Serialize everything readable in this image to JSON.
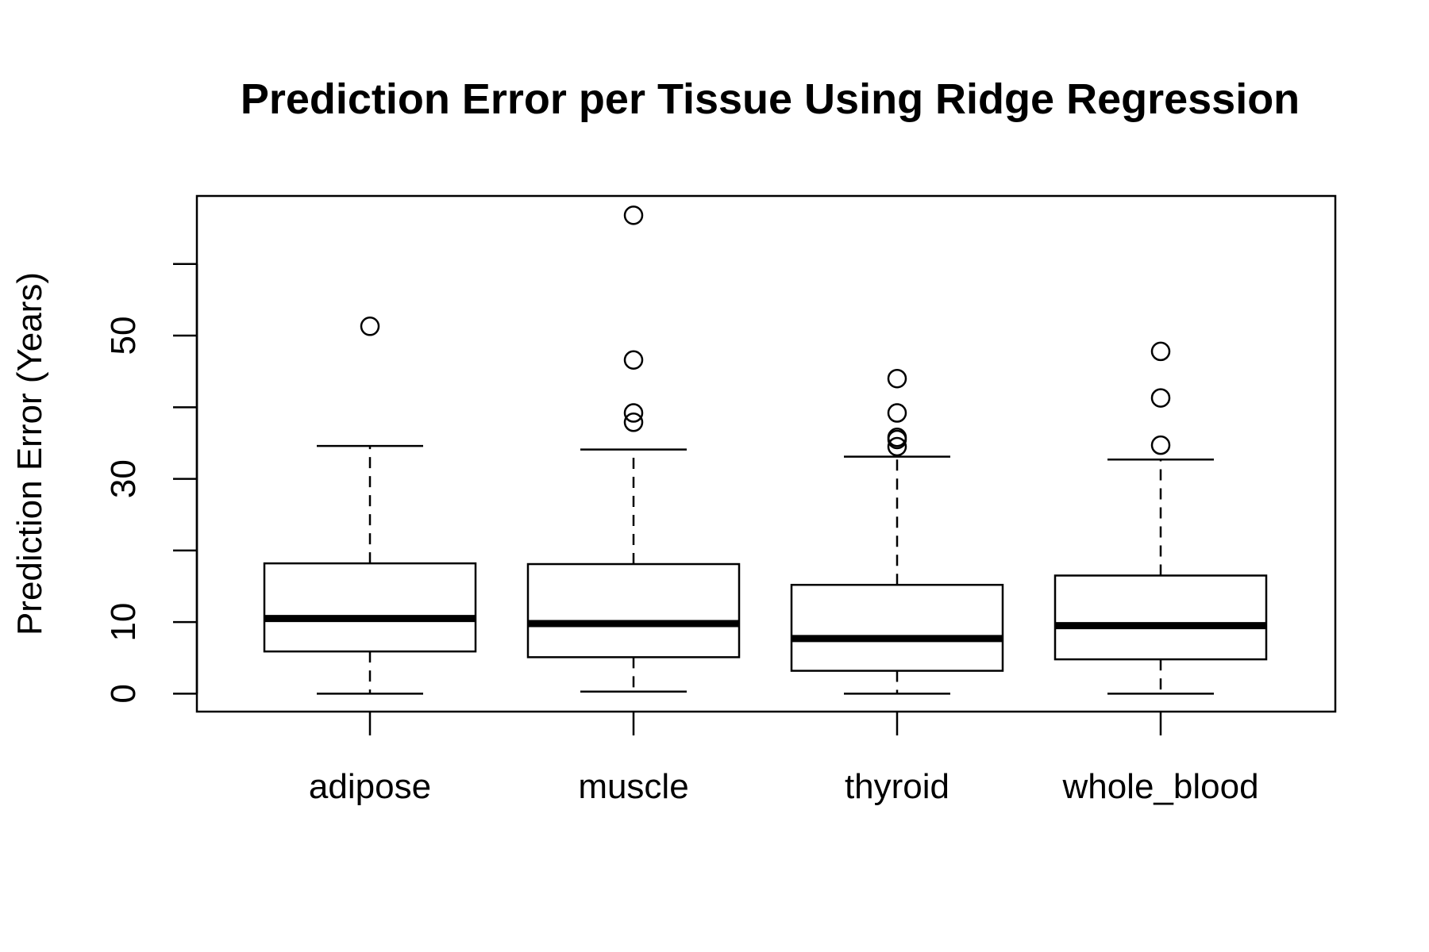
{
  "chart_data": {
    "type": "boxplot",
    "title": "Prediction Error per Tissue Using Ridge Regression",
    "xlabel": "",
    "ylabel": "Prediction Error (Years)",
    "ylim": [
      -2.5,
      69.5
    ],
    "yticks": [
      0,
      10,
      20,
      30,
      40,
      50,
      60
    ],
    "ytick_labels": [
      "0",
      "10",
      "",
      "30",
      "",
      "50",
      ""
    ],
    "grid": false,
    "categories": [
      "adipose",
      "muscle",
      "thyroid",
      "whole_blood"
    ],
    "boxes": [
      {
        "category": "adipose",
        "whisker_low": 0.0,
        "q1": 5.9,
        "median": 10.5,
        "q3": 18.2,
        "whisker_high": 34.6,
        "outliers": [
          51.3
        ]
      },
      {
        "category": "muscle",
        "whisker_low": 0.3,
        "q1": 5.1,
        "median": 9.8,
        "q3": 18.1,
        "whisker_high": 34.1,
        "outliers": [
          66.8,
          46.6,
          39.2,
          37.9
        ]
      },
      {
        "category": "thyroid",
        "whisker_low": 0.0,
        "q1": 3.2,
        "median": 7.7,
        "q3": 15.2,
        "whisker_high": 33.1,
        "outliers": [
          44.0,
          39.2,
          35.8,
          35.5,
          34.5
        ]
      },
      {
        "category": "whole_blood",
        "whisker_low": 0.0,
        "q1": 4.8,
        "median": 9.5,
        "q3": 16.5,
        "whisker_high": 32.7,
        "outliers": [
          47.8,
          41.3,
          34.7
        ]
      }
    ]
  }
}
